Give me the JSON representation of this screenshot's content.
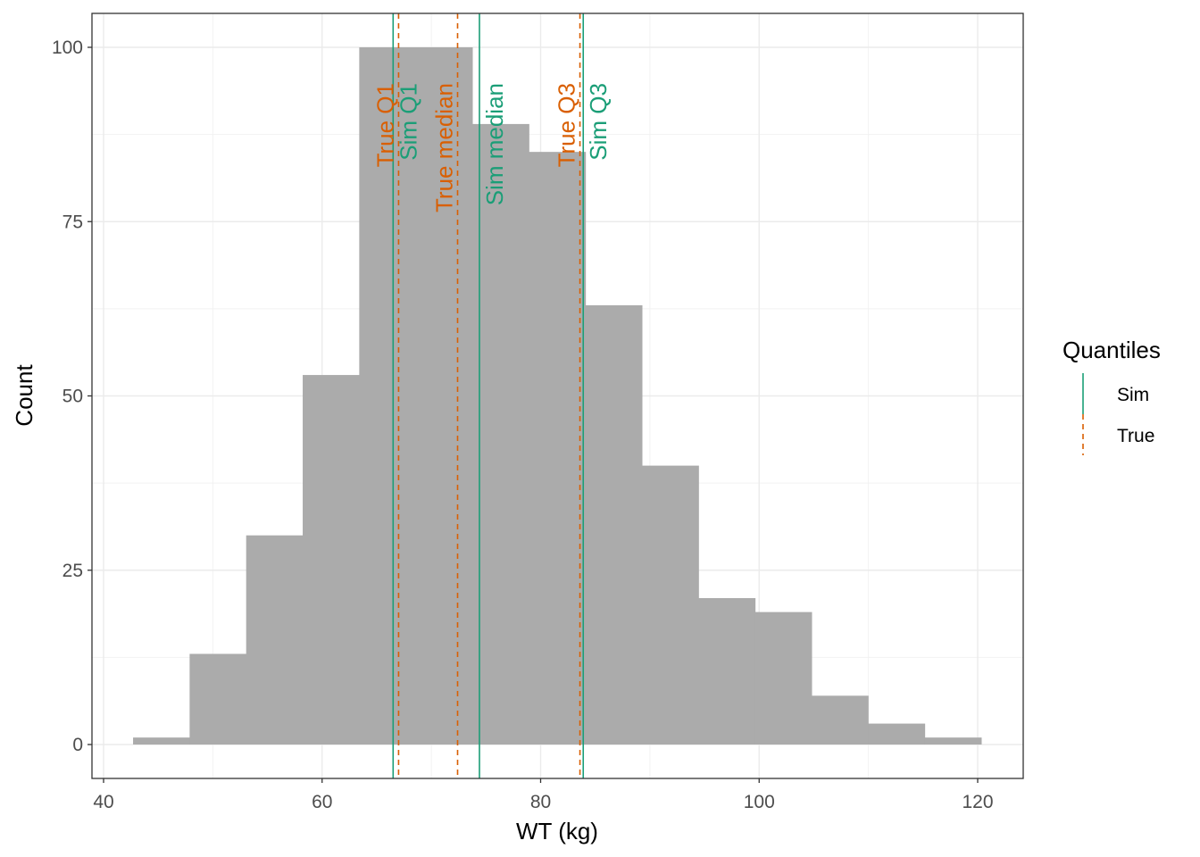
{
  "chart_data": {
    "type": "bar",
    "subtype": "histogram",
    "xlabel": "WT (kg)",
    "ylabel": "Count",
    "xlim": [
      39,
      124.5
    ],
    "ylim": [
      -4.8,
      105
    ],
    "xticks": [
      40,
      60,
      80,
      100,
      120
    ],
    "yticks": [
      0,
      25,
      50,
      75,
      100
    ],
    "grid": true,
    "bins": {
      "start": 42.7,
      "width": 5.175,
      "counts": [
        1,
        13,
        30,
        53,
        100,
        100,
        89,
        85,
        63,
        40,
        21,
        19,
        7,
        3,
        1
      ]
    },
    "bar_color": "#ABABAB",
    "legend": {
      "title": "Quantiles",
      "position": "right",
      "entries": [
        {
          "name": "Sim",
          "color": "#1B9E77",
          "dash": false
        },
        {
          "name": "True",
          "color": "#D95F02",
          "dash": true
        }
      ]
    },
    "vlines": [
      {
        "series": "Sim",
        "label": "Sim Q1",
        "x": 66.5
      },
      {
        "series": "Sim",
        "label": "Sim median",
        "x": 74.4
      },
      {
        "series": "Sim",
        "label": "Sim Q3",
        "x": 83.9
      },
      {
        "series": "True",
        "label": "True Q1",
        "x": 67.0
      },
      {
        "series": "True",
        "label": "True median",
        "x": 72.4
      },
      {
        "series": "True",
        "label": "True Q3",
        "x": 83.6
      }
    ]
  }
}
